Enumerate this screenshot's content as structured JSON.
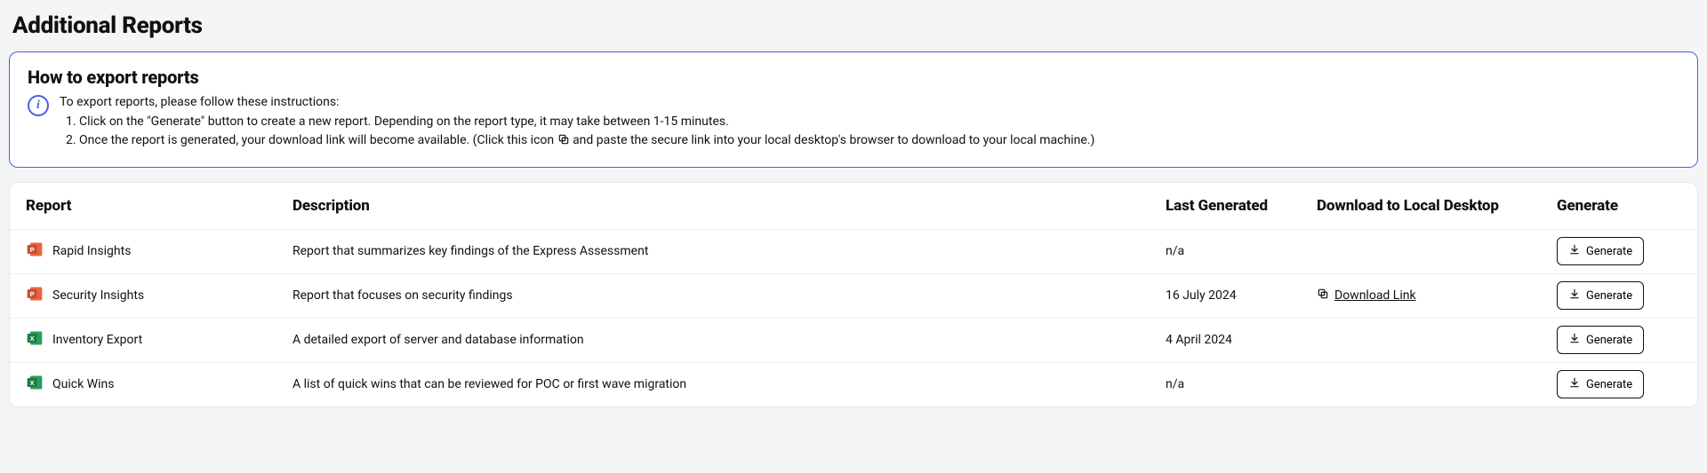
{
  "colors": {
    "accent": "#4a5fe6",
    "border": "#e8e9ec",
    "row_border": "#eceef1",
    "page_bg": "#f4f5f7",
    "card_bg": "#ffffff",
    "text": "#111111",
    "ppt_light": "#e8643e",
    "ppt_dark": "#c94f2f",
    "xls_light": "#2a9d5a",
    "xls_dark": "#1f7a44"
  },
  "page_title": "Additional Reports",
  "info": {
    "title": "How to export reports",
    "intro": "To export reports, please follow these instructions:",
    "step1": "Click on the \"Generate\" button to create a new report. Depending on the report type, it may take between 1-15 minutes.",
    "step2a": "Once the report is generated, your download link will become available. (Click this icon ",
    "step2b": " and paste the secure link into your local desktop's browser to download to your local machine.)"
  },
  "columns": {
    "report": "Report",
    "description": "Description",
    "last_generated": "Last Generated",
    "download": "Download to Local Desktop",
    "generate": "Generate"
  },
  "buttons": {
    "generate": "Generate",
    "download_link": "Download Link"
  },
  "rows": [
    {
      "icon": "ppt",
      "name": "Rapid Insights",
      "description": "Report that summarizes key findings of the Express Assessment",
      "last_generated": "n/a",
      "download": false
    },
    {
      "icon": "ppt",
      "name": "Security Insights",
      "description": "Report that focuses on security findings",
      "last_generated": "16 July 2024",
      "download": true
    },
    {
      "icon": "xls",
      "name": "Inventory Export",
      "description": "A detailed export of server and database information",
      "last_generated": "4 April 2024",
      "download": false
    },
    {
      "icon": "xls",
      "name": "Quick Wins",
      "description": "A list of quick wins that can be reviewed for POC or first wave migration",
      "last_generated": "n/a",
      "download": false
    }
  ]
}
